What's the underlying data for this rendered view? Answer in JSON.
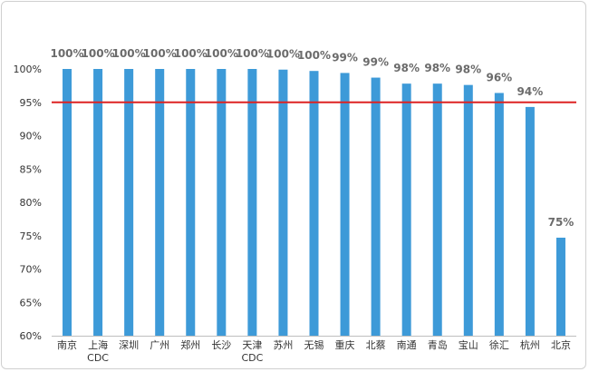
{
  "chart_data": {
    "type": "bar",
    "categories": [
      [
        "南京"
      ],
      [
        "上海",
        "CDC"
      ],
      [
        "深圳"
      ],
      [
        "广州"
      ],
      [
        "郑州"
      ],
      [
        "长沙"
      ],
      [
        "天津",
        "CDC"
      ],
      [
        "苏州"
      ],
      [
        "无锡"
      ],
      [
        "重庆"
      ],
      [
        "北蔡"
      ],
      [
        "南通"
      ],
      [
        "青岛"
      ],
      [
        "宝山"
      ],
      [
        "徐汇"
      ],
      [
        "杭州"
      ],
      [
        "北京"
      ]
    ],
    "values": [
      100,
      100,
      100,
      100,
      100,
      100,
      100,
      99.9,
      99.7,
      99.4,
      98.7,
      97.8,
      97.8,
      97.6,
      96.4,
      94.3,
      74.7
    ],
    "data_labels": [
      "100%",
      "100%",
      "100%",
      "100%",
      "100%",
      "100%",
      "100%",
      "100%",
      "100%",
      "99%",
      "99%",
      "98%",
      "98%",
      "98%",
      "96%",
      "94%",
      "75%"
    ],
    "ylim": [
      60,
      100
    ],
    "yticks": [
      60,
      65,
      70,
      75,
      80,
      85,
      90,
      95,
      100
    ],
    "ytick_labels": [
      "60%",
      "65%",
      "70%",
      "75%",
      "80%",
      "85%",
      "90%",
      "95%",
      "100%"
    ],
    "reference_line": 95,
    "grid": false,
    "colors": {
      "bar": "#3d9ad8",
      "reference_line": "#dd2222",
      "axis": "#bfbfbf"
    }
  }
}
